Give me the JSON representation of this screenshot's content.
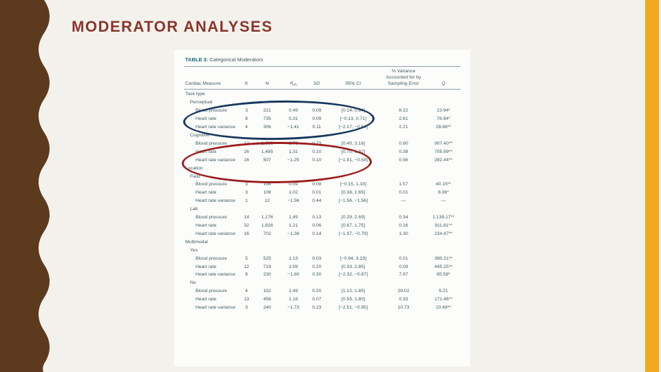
{
  "slide": {
    "title": "MODERATOR ANALYSES"
  },
  "colors": {
    "wave-brown": "#5b3a1e",
    "accent-gold": "#f2a71f",
    "title-maroon": "#8a352c",
    "ellipse-blue": "#17375e",
    "ellipse-red": "#9c1c1c",
    "table-teal": "#3f5a63",
    "caption-teal": "#136f7b"
  },
  "table": {
    "caption_label": "TABLE 3:",
    "caption_title": "Categorical Moderators",
    "columns": {
      "measure": "Cardiac Measure",
      "k": "K",
      "n": "N",
      "d": "d",
      "d_sub": "rm",
      "sd": "SD",
      "ci": "95% CI",
      "variance": "% Variance Accounted for by Sampling Error",
      "q": "Q"
    },
    "rows": [
      {
        "label": "Task type",
        "level": 0,
        "values": null
      },
      {
        "label": "Perceptual",
        "level": 1,
        "values": null
      },
      {
        "label": "Blood pressure",
        "level": 2,
        "values": [
          "3",
          "221",
          "0.49",
          "0.09",
          "[0.14, 0.84]",
          "8.22",
          "13.94*"
        ]
      },
      {
        "label": "Heart rate",
        "level": 2,
        "values": [
          "8",
          "735",
          "0.31",
          "0.09",
          "[−0.13, 0.71]",
          "2.61",
          "78.94*"
        ]
      },
      {
        "label": "Heart rate variance",
        "level": 2,
        "values": [
          "4",
          "306",
          "−1.41",
          "0.11",
          "[−2.17, −0.64]",
          "2.21",
          "28.88**"
        ]
      },
      {
        "label": "Cognitive",
        "level": 1,
        "values": null
      },
      {
        "label": "Blood pressure",
        "level": 2,
        "values": [
          "12",
          "1,066",
          "1.78",
          "0.23",
          "[0.40, 3.16]",
          "0.90",
          "907.40**"
        ]
      },
      {
        "label": "Heart rate",
        "level": 2,
        "values": [
          "26",
          "1,485",
          "1.31",
          "0.10",
          "[0.70, 1.92]",
          "0.38",
          "705.69**"
        ]
      },
      {
        "label": "Heart rate variance",
        "level": 2,
        "values": [
          "16",
          "507",
          "−1.25",
          "0.10",
          "[−1.91, −0.58]",
          "0.56",
          "282.44**"
        ]
      },
      {
        "label": "Location",
        "level": 0,
        "values": null
      },
      {
        "label": "Field",
        "level": 1,
        "values": null
      },
      {
        "label": "Blood pressure",
        "level": 2,
        "values": [
          "3",
          "194",
          "0.59",
          "0.08",
          "[−0.15, 1.33]",
          "1.57",
          "40.15**"
        ]
      },
      {
        "label": "Heart rate",
        "level": 2,
        "values": [
          "3",
          "108",
          "1.02",
          "0.01",
          "[0.38, 1.65]",
          "0.01",
          "8.06*"
        ]
      },
      {
        "label": "Heart rate variance",
        "level": 2,
        "values": [
          "1",
          "12",
          "−1.56",
          "0.44",
          "[−1.56, −1.56]",
          "—",
          "—"
        ]
      },
      {
        "label": "Lab",
        "level": 1,
        "values": null
      },
      {
        "label": "Blood pressure",
        "level": 2,
        "values": [
          "14",
          "1,176",
          "1.49",
          "0.13",
          "[0.29, 2.69]",
          "0.34",
          "1,139.17**"
        ]
      },
      {
        "label": "Heart rate",
        "level": 2,
        "values": [
          "32",
          "1,826",
          "1.21",
          "0.06",
          "[0.67, 1.75]",
          "0.16",
          "911.81**"
        ]
      },
      {
        "label": "Heart rate variance",
        "level": 2,
        "values": [
          "16",
          "702",
          "−1.38",
          "0.14",
          "[−1.97, −0.79]",
          "1.30",
          "234.47**"
        ]
      },
      {
        "label": "Multimodal",
        "level": 0,
        "values": null
      },
      {
        "label": "Yes",
        "level": 1,
        "values": null
      },
      {
        "label": "Blood pressure",
        "level": 2,
        "values": [
          "5",
          "525",
          "1.13",
          "0.03",
          "[−0.94, 3.19]",
          "0.01",
          "390.21**"
        ]
      },
      {
        "label": "Heart rate",
        "level": 2,
        "values": [
          "12",
          "719",
          "1.59",
          "0.20",
          "[0.33, 2.85]",
          "0.09",
          "445.25**"
        ]
      },
      {
        "label": "Heart rate variance",
        "level": 2,
        "values": [
          "8",
          "230",
          "−1.60",
          "0.30",
          "[−2.32, −0.87]",
          "7.97",
          "85.58*"
        ]
      },
      {
        "label": "No",
        "level": 1,
        "values": null
      },
      {
        "label": "Blood pressure",
        "level": 2,
        "values": [
          "4",
          "152",
          "1.49",
          "0.20",
          "[1.12, 1.85]",
          "29.02",
          "5.21"
        ]
      },
      {
        "label": "Heart rate",
        "level": 2,
        "values": [
          "13",
          "458",
          "1.18",
          "0.07",
          "[0.55, 1.80]",
          "0.33",
          "171.46**"
        ]
      },
      {
        "label": "Heart rate variance",
        "level": 2,
        "values": [
          "3",
          "240",
          "−1.73",
          "0.23",
          "[−2.51, −0.95]",
          "10.73",
          "10.48**"
        ]
      }
    ]
  }
}
